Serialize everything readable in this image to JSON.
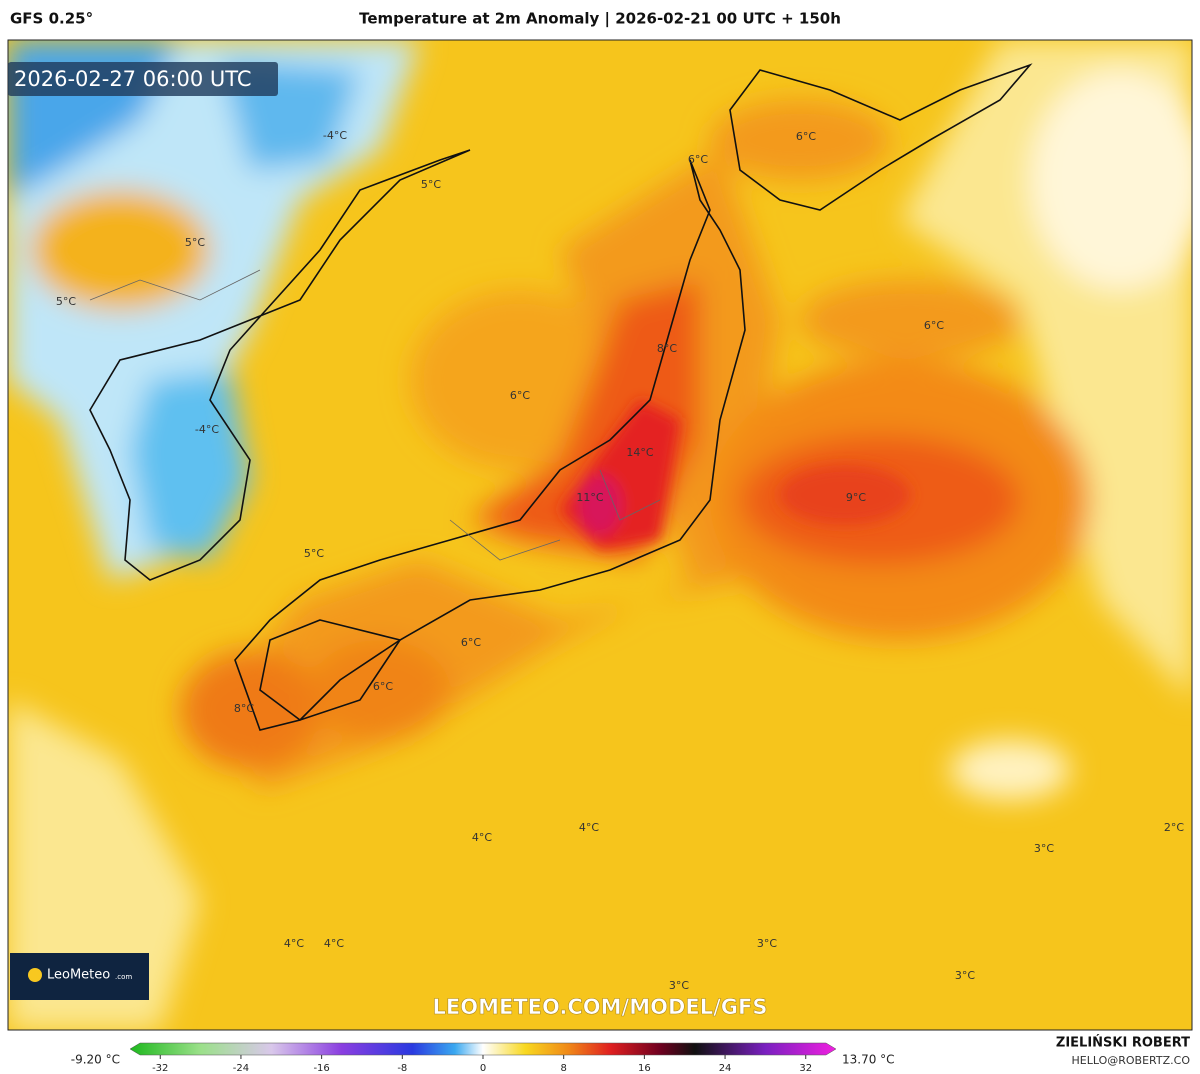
{
  "header": {
    "model": "GFS 0.25°",
    "title": "Temperature at 2m Anomaly | 2026-02-21 00 UTC + 150h",
    "valid_time": "2026-02-27 06:00 UTC"
  },
  "map": {
    "labels": [
      "-4°C",
      "6°C",
      "6°C",
      "5°C",
      "5°C",
      "5°C",
      "6°C",
      "8°C",
      "6°C",
      "-4°C",
      "14°C",
      "11°C",
      "9°C",
      "5°C",
      "6°C",
      "6°C",
      "8°C",
      "4°C",
      "2°C",
      "4°C",
      "3°C",
      "4°C",
      "4°C",
      "3°C",
      "3°C",
      "3°C"
    ]
  },
  "branding": {
    "logo": "LeoMeteo",
    "logo_suffix": ".com",
    "url": "LEOMETEO.COM/MODEL/GFS"
  },
  "colorbar": {
    "min_label": "-9.20 °C",
    "max_label": "13.70 °C",
    "lim": [
      -35,
      35
    ],
    "ticks": [
      -32,
      -24,
      -16,
      -8,
      0,
      8,
      16,
      24,
      32
    ]
  },
  "credit": {
    "name": "ZIELIŃSKI ROBERT",
    "email": "HELLO@ROBERTZ.CO"
  }
}
